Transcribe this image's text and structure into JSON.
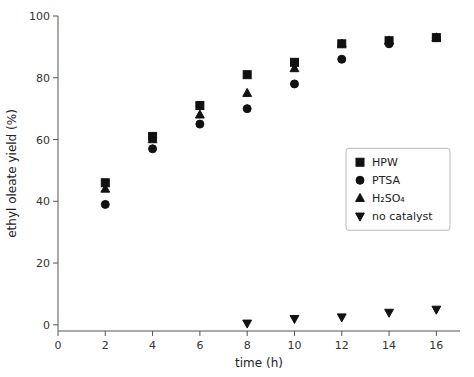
{
  "chart_data": {
    "type": "scatter",
    "title": "",
    "x_label": "time (h)",
    "y_label": "ethyl oleate yield (%)",
    "xlim": [
      0,
      17
    ],
    "ylim": [
      -2,
      100
    ],
    "xticks": [
      0,
      2,
      4,
      6,
      8,
      10,
      12,
      14,
      16
    ],
    "yticks": [
      0,
      20,
      40,
      60,
      80,
      100
    ],
    "grid": false,
    "legend": "right",
    "series": [
      {
        "name": "HPW",
        "color": "#111111",
        "marker": "square",
        "x": [
          2,
          4,
          6,
          8,
          10,
          12,
          14,
          16
        ],
        "values": [
          46,
          61,
          71,
          81,
          85,
          91,
          92,
          93
        ]
      },
      {
        "name": "PTSA",
        "color": "#111111",
        "marker": "circle",
        "x": [
          2,
          4,
          6,
          8,
          10,
          12,
          14,
          16
        ],
        "values": [
          39,
          57,
          65,
          70,
          78,
          86,
          91,
          93
        ]
      },
      {
        "name": "H₂SO₄",
        "color": "#111111",
        "marker": "triangle-up",
        "x": [
          2,
          4,
          6,
          8,
          10,
          12,
          14,
          16
        ],
        "values": [
          44,
          60,
          68,
          75,
          83,
          91,
          92,
          93
        ]
      },
      {
        "name": "no catalyst",
        "color": "#111111",
        "marker": "triangle-down",
        "x": [
          8,
          10,
          12,
          14,
          16
        ],
        "values": [
          0.5,
          2,
          2.5,
          4,
          5
        ]
      }
    ]
  }
}
